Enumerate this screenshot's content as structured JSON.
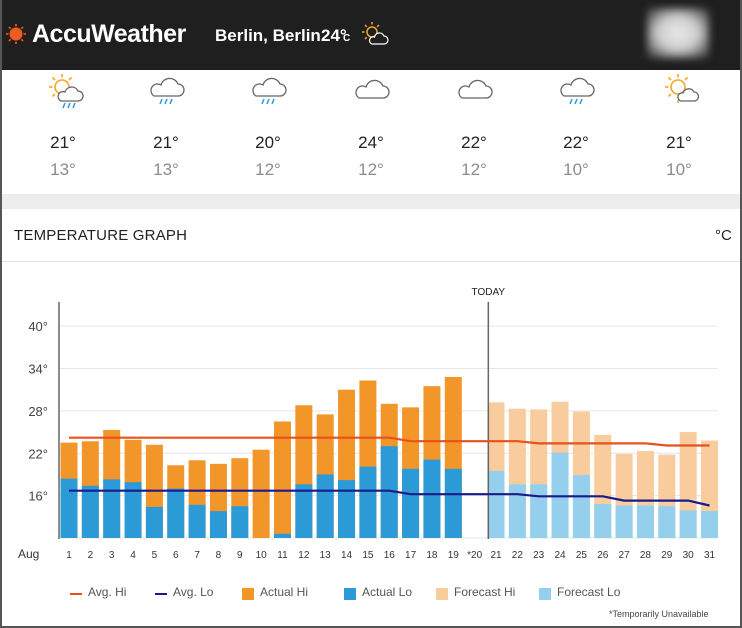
{
  "header": {
    "brand": "AccuWeather",
    "city": "Berlin, Berlin",
    "temp": "24°",
    "unit": "C"
  },
  "forecast": [
    {
      "icon": "sun-cloud-rain-icon",
      "hi": "21°",
      "lo": "13°"
    },
    {
      "icon": "cloud-rain-icon",
      "hi": "21°",
      "lo": "13°"
    },
    {
      "icon": "cloud-rain-icon",
      "hi": "20°",
      "lo": "12°"
    },
    {
      "icon": "cloud-icon",
      "hi": "24°",
      "lo": "12°"
    },
    {
      "icon": "cloud-icon",
      "hi": "22°",
      "lo": "12°"
    },
    {
      "icon": "cloud-rain-icon",
      "hi": "22°",
      "lo": "10°"
    },
    {
      "icon": "sun-cloud-icon",
      "hi": "21°",
      "lo": "10°"
    }
  ],
  "graph": {
    "title": "TEMPERATURE GRAPH",
    "unit": "°C",
    "today_label": "TODAY",
    "footnote": "*Temporarily Unavailable"
  },
  "legend": [
    {
      "label": "Avg. Hi",
      "kind": "line",
      "color": "#e8501c"
    },
    {
      "label": "Avg. Lo",
      "kind": "line",
      "color": "#1a1a8c"
    },
    {
      "label": "Actual Hi",
      "kind": "box",
      "color": "#f2962a"
    },
    {
      "label": "Actual Lo",
      "kind": "box",
      "color": "#2b9ad6"
    },
    {
      "label": "Forecast Hi",
      "kind": "box",
      "color": "#f8cc9c"
    },
    {
      "label": "Forecast Lo",
      "kind": "box",
      "color": "#94cfee"
    }
  ],
  "chart_data": {
    "type": "bar",
    "month_label": "Aug",
    "categories": [
      "1",
      "2",
      "3",
      "4",
      "5",
      "6",
      "7",
      "8",
      "9",
      "10",
      "11",
      "12",
      "13",
      "14",
      "15",
      "16",
      "17",
      "18",
      "19",
      "*20",
      "21",
      "22",
      "23",
      "24",
      "25",
      "26",
      "27",
      "28",
      "29",
      "30",
      "31"
    ],
    "ylim": [
      10,
      42
    ],
    "yticks": [
      16,
      22,
      28,
      34,
      40
    ],
    "ytick_labels": [
      "16°",
      "22°",
      "28°",
      "34°",
      "40°"
    ],
    "today_index": 20,
    "unavailable_index": 19,
    "series": [
      {
        "name": "Actual Hi",
        "values": [
          23.5,
          23.7,
          25.3,
          23.9,
          23.2,
          20.3,
          21.0,
          20.5,
          21.3,
          22.5,
          26.5,
          28.8,
          27.5,
          31.0,
          32.3,
          29.0,
          28.5,
          31.5,
          32.8,
          null,
          null,
          null,
          null,
          null,
          null,
          null,
          null,
          null,
          null,
          null,
          null
        ]
      },
      {
        "name": "Actual Lo",
        "values": [
          18.4,
          17.4,
          18.3,
          17.9,
          14.4,
          17.0,
          14.7,
          13.8,
          14.5,
          10.0,
          10.6,
          17.6,
          19.0,
          18.2,
          20.1,
          23.0,
          19.8,
          21.1,
          19.8,
          null,
          null,
          null,
          null,
          null,
          null,
          null,
          null,
          null,
          null,
          null,
          null
        ]
      },
      {
        "name": "Forecast Hi",
        "values": [
          null,
          null,
          null,
          null,
          null,
          null,
          null,
          null,
          null,
          null,
          null,
          null,
          null,
          null,
          null,
          null,
          null,
          null,
          null,
          null,
          29.2,
          28.3,
          28.2,
          29.3,
          27.9,
          24.6,
          21.9,
          22.3,
          21.8,
          25.0,
          23.8
        ]
      },
      {
        "name": "Forecast Lo",
        "values": [
          null,
          null,
          null,
          null,
          null,
          null,
          null,
          null,
          null,
          null,
          null,
          null,
          null,
          null,
          null,
          null,
          null,
          null,
          null,
          null,
          19.5,
          17.6,
          17.6,
          22.1,
          18.9,
          14.8,
          14.6,
          14.6,
          14.5,
          13.9,
          13.8
        ]
      },
      {
        "name": "Avg. Hi",
        "values": [
          24.2,
          24.2,
          24.2,
          24.2,
          24.2,
          24.2,
          24.2,
          24.2,
          24.2,
          24.2,
          24.2,
          24.2,
          24.2,
          24.2,
          24.2,
          24.2,
          23.7,
          23.7,
          23.7,
          23.7,
          23.7,
          23.7,
          23.4,
          23.4,
          23.4,
          23.4,
          23.4,
          23.4,
          23.1,
          23.1,
          23.1
        ]
      },
      {
        "name": "Avg. Lo",
        "values": [
          16.7,
          16.7,
          16.7,
          16.7,
          16.7,
          16.7,
          16.7,
          16.7,
          16.7,
          16.7,
          16.7,
          16.7,
          16.7,
          16.7,
          16.7,
          16.7,
          16.2,
          16.2,
          16.2,
          16.2,
          16.2,
          16.2,
          15.9,
          15.9,
          15.9,
          15.9,
          15.3,
          15.3,
          15.3,
          15.3,
          14.6
        ]
      }
    ]
  }
}
